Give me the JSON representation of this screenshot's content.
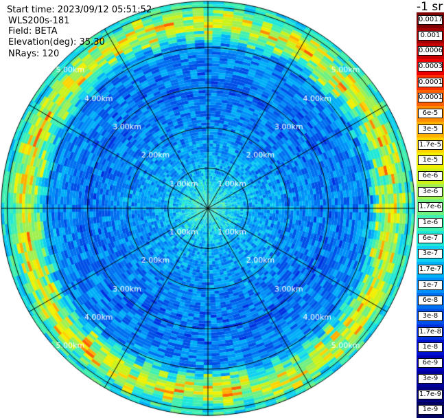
{
  "info": {
    "start_time": "Start time: 2023/09/12 05:51:52",
    "instrument": "WLS200s-181",
    "field": "Field: BETA",
    "elevation": "Elevation(deg): 35.30",
    "nrays": "NRays: 120"
  },
  "colorbar": {
    "title": "-1 sr",
    "entries": [
      {
        "label": "0.0017",
        "color": "#7f0000"
      },
      {
        "label": "0.001",
        "color": "#a00000"
      },
      {
        "label": "0.0006",
        "color": "#c80000"
      },
      {
        "label": "0.0003",
        "color": "#ee0000"
      },
      {
        "label": "0.00017",
        "color": "#ff3000"
      },
      {
        "label": "0.0001",
        "color": "#ff6000"
      },
      {
        "label": "6e-5",
        "color": "#ff8c00"
      },
      {
        "label": "3e-5",
        "color": "#ffb000"
      },
      {
        "label": "1.7e-5",
        "color": "#ffd400"
      },
      {
        "label": "1e-5",
        "color": "#f0f000"
      },
      {
        "label": "6e-6",
        "color": "#ccf21a"
      },
      {
        "label": "3e-6",
        "color": "#a0f050"
      },
      {
        "label": "1.7e-6",
        "color": "#70f080"
      },
      {
        "label": "1e-6",
        "color": "#40f0b0"
      },
      {
        "label": "6e-7",
        "color": "#20e8d8"
      },
      {
        "label": "3e-7",
        "color": "#10d0f0"
      },
      {
        "label": "1.7e-7",
        "color": "#00b0f8"
      },
      {
        "label": "1e-7",
        "color": "#0090f8"
      },
      {
        "label": "6e-8",
        "color": "#0070f0"
      },
      {
        "label": "3e-8",
        "color": "#0050e8"
      },
      {
        "label": "1.7e-8",
        "color": "#0030e0"
      },
      {
        "label": "1e-8",
        "color": "#0010d0"
      },
      {
        "label": "6e-9",
        "color": "#0000b8"
      },
      {
        "label": "3e-9",
        "color": "#00009a"
      },
      {
        "label": "1.7e-9",
        "color": "#000080"
      },
      {
        "label": "1e-9",
        "color": "#000060"
      }
    ]
  },
  "chart_data": {
    "type": "heatmap",
    "projection": "polar (PPI scan)",
    "field": "BETA",
    "units": "-1 sr",
    "n_rays": 120,
    "range_rings_km": [
      1,
      2,
      3,
      4,
      5
    ],
    "ring_labels": [
      "1.00km",
      "2.00km",
      "3.00km",
      "4.00km",
      "5.00km"
    ],
    "max_range_km": 5.15,
    "azimuth_lines_deg": [
      0,
      30,
      60,
      90,
      120,
      150,
      180,
      210,
      240,
      270,
      300,
      330
    ],
    "color_scale": "log",
    "value_range": [
      1e-09,
      0.0017
    ],
    "radial_profile_typical": [
      {
        "range_km": 0.3,
        "value": 6e-07
      },
      {
        "range_km": 1.0,
        "value": 1.7e-07
      },
      {
        "range_km": 2.0,
        "value": 1e-07
      },
      {
        "range_km": 3.0,
        "value": 6e-08
      },
      {
        "range_km": 4.0,
        "value": 1e-07
      },
      {
        "range_km": 4.6,
        "value": 6e-06
      },
      {
        "range_km": 5.0,
        "value": 6e-07
      }
    ]
  }
}
